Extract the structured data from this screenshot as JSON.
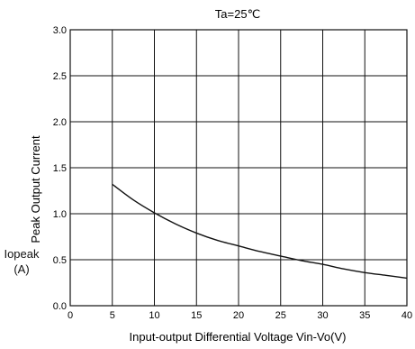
{
  "chart_data": {
    "type": "line",
    "title": "Ta=25℃",
    "xlabel": "Input-output Differential Voltage Vin-Vo(V)",
    "ylabel": "Peak Output Current",
    "ylabel_symbol": "Iopeak",
    "ylabel_unit": "(A)",
    "xlim": [
      0,
      40
    ],
    "ylim": [
      0.0,
      3.0
    ],
    "x_ticks": [
      "0",
      "5",
      "10",
      "15",
      "20",
      "25",
      "30",
      "35",
      "40"
    ],
    "y_ticks": [
      "0.0",
      "0.5",
      "1.0",
      "1.5",
      "2.0",
      "2.5",
      "3.0"
    ],
    "grid": true,
    "series": [
      {
        "x": [
          5,
          7.5,
          10,
          12.5,
          15,
          17.5,
          20,
          22.5,
          25,
          27.5,
          30,
          32.5,
          35,
          37.5,
          40
        ],
        "values": [
          1.32,
          1.15,
          1.01,
          0.89,
          0.79,
          0.71,
          0.65,
          0.59,
          0.54,
          0.49,
          0.45,
          0.4,
          0.36,
          0.33,
          0.3
        ]
      }
    ]
  }
}
